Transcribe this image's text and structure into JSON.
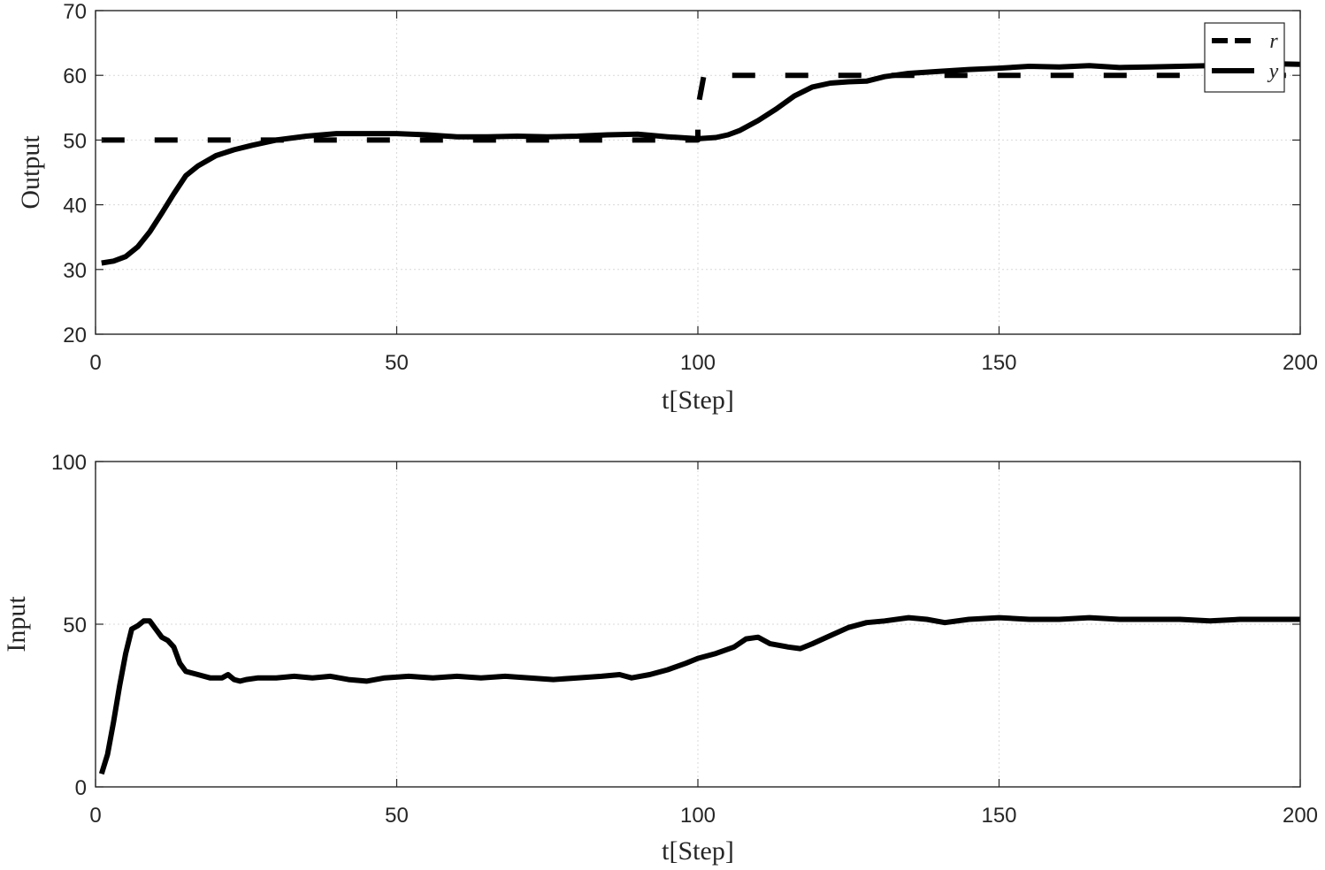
{
  "chart_data": [
    {
      "type": "line",
      "xlabel": "t[Step]",
      "ylabel": "Output",
      "xlim": [
        0,
        200
      ],
      "ylim": [
        20,
        70
      ],
      "xticks": [
        "0",
        "50",
        "100",
        "150",
        "200"
      ],
      "yticks": [
        "20",
        "30",
        "40",
        "50",
        "60",
        "70"
      ],
      "grid": true,
      "legend": {
        "position": "top-right"
      },
      "series": [
        {
          "name": "r",
          "style": "dashed",
          "color": "#000000",
          "points": [
            [
              1,
              50
            ],
            [
              100,
              50
            ],
            [
              100,
              55
            ],
            [
              101,
              60
            ],
            [
              200,
              60
            ]
          ]
        },
        {
          "name": "y",
          "style": "solid",
          "color": "#000000",
          "points": [
            [
              1,
              31
            ],
            [
              3,
              31.3
            ],
            [
              5,
              32
            ],
            [
              7,
              33.5
            ],
            [
              9,
              35.8
            ],
            [
              11,
              38.7
            ],
            [
              13,
              41.7
            ],
            [
              15,
              44.5
            ],
            [
              17,
              46
            ],
            [
              20,
              47.6
            ],
            [
              23,
              48.5
            ],
            [
              26,
              49.2
            ],
            [
              30,
              50
            ],
            [
              35,
              50.6
            ],
            [
              40,
              51
            ],
            [
              45,
              51
            ],
            [
              50,
              51
            ],
            [
              55,
              50.8
            ],
            [
              60,
              50.5
            ],
            [
              65,
              50.5
            ],
            [
              70,
              50.6
            ],
            [
              75,
              50.5
            ],
            [
              80,
              50.6
            ],
            [
              85,
              50.8
            ],
            [
              90,
              50.9
            ],
            [
              95,
              50.5
            ],
            [
              100,
              50.2
            ],
            [
              103,
              50.4
            ],
            [
              105,
              50.8
            ],
            [
              107,
              51.5
            ],
            [
              110,
              53
            ],
            [
              113,
              54.8
            ],
            [
              116,
              56.8
            ],
            [
              119,
              58.2
            ],
            [
              122,
              58.8
            ],
            [
              125,
              59
            ],
            [
              128,
              59.1
            ],
            [
              131,
              59.8
            ],
            [
              135,
              60.3
            ],
            [
              140,
              60.6
            ],
            [
              145,
              60.9
            ],
            [
              150,
              61.1
            ],
            [
              155,
              61.4
            ],
            [
              160,
              61.3
            ],
            [
              165,
              61.5
            ],
            [
              170,
              61.2
            ],
            [
              175,
              61.3
            ],
            [
              180,
              61.4
            ],
            [
              185,
              61.5
            ],
            [
              190,
              61.6
            ],
            [
              195,
              61.8
            ],
            [
              200,
              61.7
            ]
          ]
        }
      ]
    },
    {
      "type": "line",
      "xlabel": "t[Step]",
      "ylabel": "Input",
      "xlim": [
        0,
        200
      ],
      "ylim": [
        0,
        100
      ],
      "xticks": [
        "0",
        "50",
        "100",
        "150",
        "200"
      ],
      "yticks": [
        "0",
        "50",
        "100"
      ],
      "grid": true,
      "series": [
        {
          "style": "solid",
          "color": "#000000",
          "points": [
            [
              1,
              4
            ],
            [
              2,
              10
            ],
            [
              3,
              20
            ],
            [
              4,
              31
            ],
            [
              5,
              41
            ],
            [
              6,
              48.5
            ],
            [
              7,
              49.5
            ],
            [
              8,
              51
            ],
            [
              9,
              51
            ],
            [
              10,
              48.5
            ],
            [
              11,
              46
            ],
            [
              12,
              45
            ],
            [
              13,
              43
            ],
            [
              14,
              38
            ],
            [
              15,
              35.5
            ],
            [
              17,
              34.5
            ],
            [
              19,
              33.5
            ],
            [
              21,
              33.5
            ],
            [
              22,
              34.5
            ],
            [
              23,
              33
            ],
            [
              24,
              32.5
            ],
            [
              25,
              33
            ],
            [
              27,
              33.5
            ],
            [
              30,
              33.5
            ],
            [
              33,
              34
            ],
            [
              36,
              33.5
            ],
            [
              39,
              34
            ],
            [
              42,
              33
            ],
            [
              45,
              32.5
            ],
            [
              48,
              33.5
            ],
            [
              52,
              34
            ],
            [
              56,
              33.5
            ],
            [
              60,
              34
            ],
            [
              64,
              33.5
            ],
            [
              68,
              34
            ],
            [
              72,
              33.5
            ],
            [
              76,
              33
            ],
            [
              80,
              33.5
            ],
            [
              84,
              34
            ],
            [
              87,
              34.5
            ],
            [
              89,
              33.5
            ],
            [
              92,
              34.5
            ],
            [
              95,
              36
            ],
            [
              98,
              38
            ],
            [
              100,
              39.5
            ],
            [
              103,
              41
            ],
            [
              106,
              43
            ],
            [
              108,
              45.5
            ],
            [
              110,
              46
            ],
            [
              112,
              44
            ],
            [
              115,
              43
            ],
            [
              117,
              42.5
            ],
            [
              119,
              44
            ],
            [
              122,
              46.5
            ],
            [
              125,
              49
            ],
            [
              128,
              50.5
            ],
            [
              131,
              51
            ],
            [
              135,
              52
            ],
            [
              138,
              51.5
            ],
            [
              141,
              50.5
            ],
            [
              145,
              51.5
            ],
            [
              150,
              52
            ],
            [
              155,
              51.5
            ],
            [
              160,
              51.5
            ],
            [
              165,
              52
            ],
            [
              170,
              51.5
            ],
            [
              175,
              51.5
            ],
            [
              180,
              51.5
            ],
            [
              185,
              51
            ],
            [
              190,
              51.5
            ],
            [
              195,
              51.5
            ],
            [
              200,
              51.5
            ]
          ]
        }
      ]
    }
  ]
}
